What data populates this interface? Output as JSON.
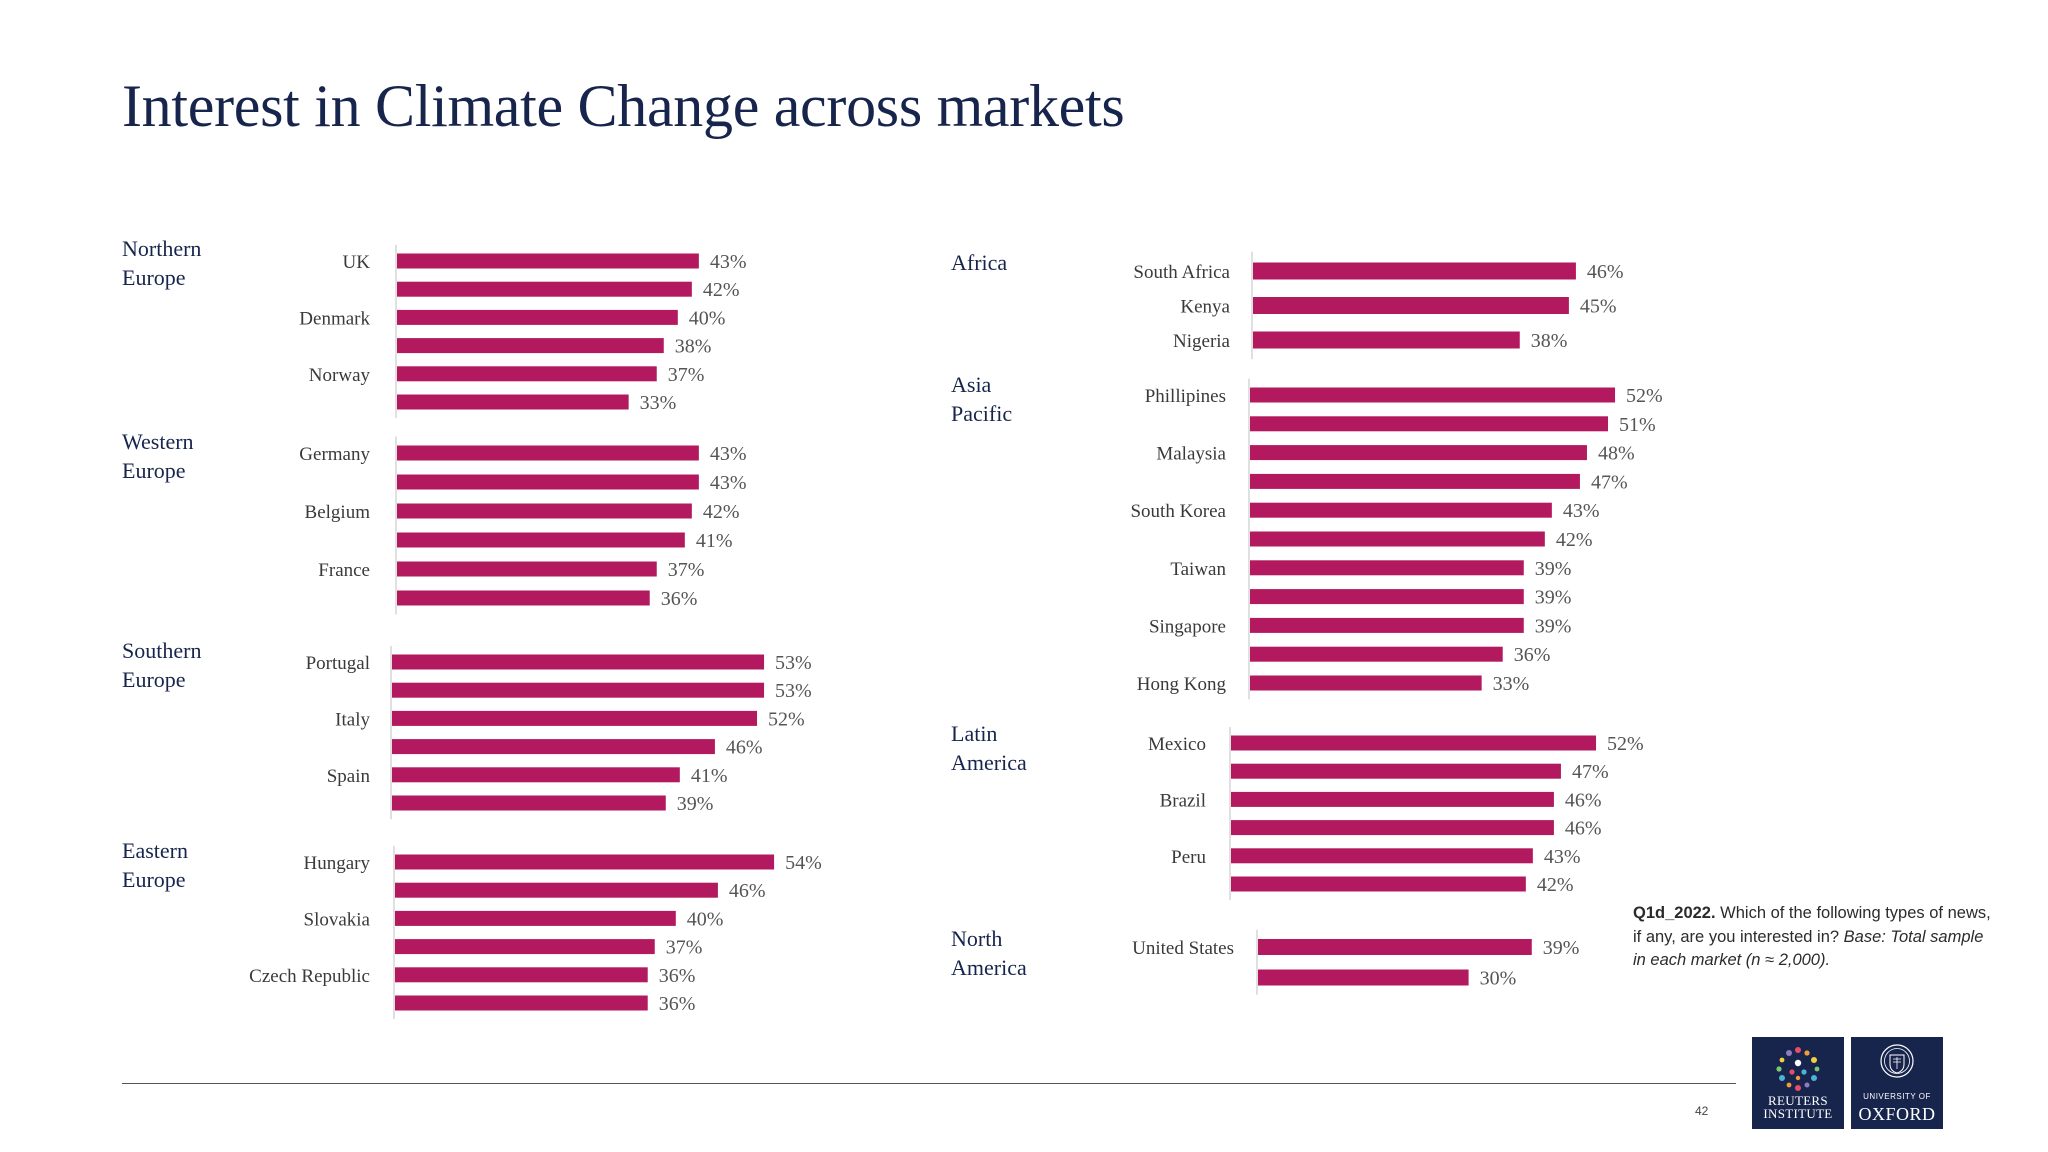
{
  "title": "Interest in Climate Change across markets",
  "chart_data": [
    {
      "type": "bar",
      "orientation": "horizontal",
      "region": "Northern Europe",
      "xlim": [
        0,
        100
      ],
      "categories": [
        "UK",
        "",
        "Denmark",
        "",
        "Norway",
        ""
      ],
      "values": [
        43,
        42,
        40,
        38,
        37,
        33
      ]
    },
    {
      "type": "bar",
      "orientation": "horizontal",
      "region": "Western Europe",
      "xlim": [
        0,
        100
      ],
      "categories": [
        "Germany",
        "",
        "Belgium",
        "",
        "France",
        ""
      ],
      "values": [
        43,
        43,
        42,
        41,
        37,
        36
      ]
    },
    {
      "type": "bar",
      "orientation": "horizontal",
      "region": "Southern Europe",
      "xlim": [
        0,
        100
      ],
      "categories": [
        "Portugal",
        "",
        "Italy",
        "",
        "Spain",
        ""
      ],
      "values": [
        53,
        53,
        52,
        46,
        41,
        39
      ]
    },
    {
      "type": "bar",
      "orientation": "horizontal",
      "region": "Eastern Europe",
      "xlim": [
        0,
        100
      ],
      "categories": [
        "Hungary",
        "",
        "Slovakia",
        "",
        "Czech Republic",
        ""
      ],
      "values": [
        54,
        46,
        40,
        37,
        36,
        36
      ]
    },
    {
      "type": "bar",
      "orientation": "horizontal",
      "region": "Africa",
      "xlim": [
        0,
        100
      ],
      "categories": [
        "South Africa",
        "Kenya",
        "Nigeria"
      ],
      "values": [
        46,
        45,
        38
      ]
    },
    {
      "type": "bar",
      "orientation": "horizontal",
      "region": "Asia Pacific",
      "xlim": [
        0,
        100
      ],
      "categories": [
        "Phillipines",
        "",
        "Malaysia",
        "",
        "South Korea",
        "",
        "Taiwan",
        "",
        "Singapore",
        "",
        "Hong Kong"
      ],
      "values": [
        52,
        51,
        48,
        47,
        43,
        42,
        39,
        39,
        39,
        36,
        33
      ]
    },
    {
      "type": "bar",
      "orientation": "horizontal",
      "region": "Latin America",
      "xlim": [
        0,
        100
      ],
      "categories": [
        "Mexico",
        "",
        "Brazil",
        "",
        "Peru",
        ""
      ],
      "values": [
        52,
        47,
        46,
        46,
        43,
        42
      ]
    },
    {
      "type": "bar",
      "orientation": "horizontal",
      "region": "North America",
      "xlim": [
        0,
        100
      ],
      "categories": [
        "United States",
        ""
      ],
      "values": [
        39,
        30
      ]
    }
  ],
  "note": {
    "code": "Q1d_2022.",
    "question": " Which of the following types of news, if any, are you interested in? ",
    "base": "Base: Total sample in each market (n ≈ 2,000)."
  },
  "page_number": "42",
  "logos": {
    "reuters": {
      "line1": "REUTERS",
      "line2": "INSTITUTE"
    },
    "oxford": {
      "line1": "UNIVERSITY OF",
      "line2": "OXFORD"
    }
  },
  "colors": {
    "bar": "#b3195f",
    "title": "#17254d",
    "logo_bg": "#17254d"
  }
}
